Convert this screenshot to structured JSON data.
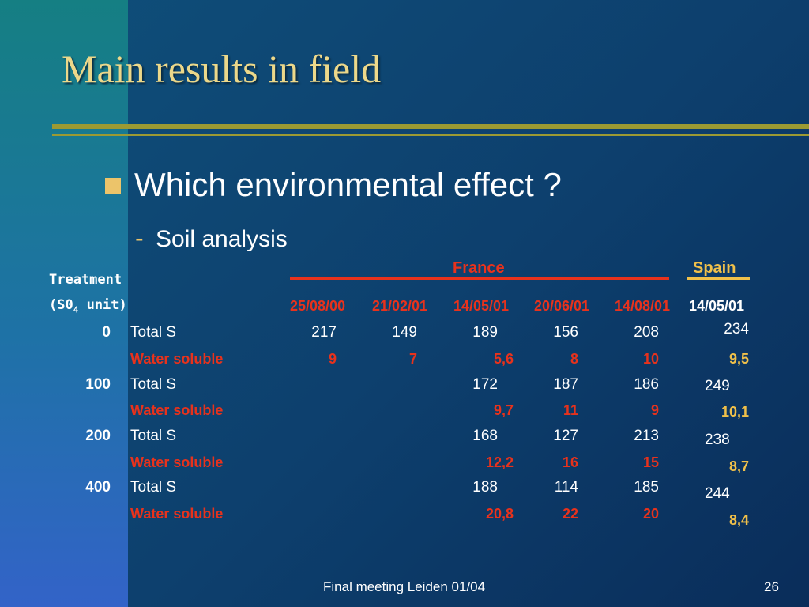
{
  "slide": {
    "title": "Main results in field",
    "bullet": "Which environmental effect ?",
    "dash": "-",
    "sub_bullet": "Soil analysis"
  },
  "table": {
    "treatment_header": "Treatment",
    "unit_header_prefix": "(S0",
    "unit_header_sub": "4",
    "unit_header_suffix": " unit)",
    "country_france": "France",
    "country_spain": "Spain",
    "dates": [
      "25/08/00",
      "21/02/01",
      "14/05/01",
      "20/06/01",
      "14/08/01",
      "14/05/01"
    ],
    "rows": [
      {
        "dose": "0",
        "total_label": "Total S",
        "total": [
          "217",
          "149",
          "189",
          "156",
          "208",
          "234"
        ],
        "ws_label": "Water soluble",
        "ws": [
          "9",
          "7",
          "5,6",
          "8",
          "10",
          "9,5"
        ]
      },
      {
        "dose": "100",
        "total_label": "Total S",
        "total": [
          "",
          "",
          "172",
          "187",
          "186",
          "249"
        ],
        "ws_label": "Water soluble",
        "ws": [
          "",
          "",
          "9,7",
          "11",
          "9",
          "10,1"
        ]
      },
      {
        "dose": "200",
        "total_label": "Total S",
        "total": [
          "",
          "",
          "168",
          "127",
          "213",
          "238"
        ],
        "ws_label": "Water soluble",
        "ws": [
          "",
          "",
          "12,2",
          "16",
          "15",
          "8,7"
        ]
      },
      {
        "dose": "400",
        "total_label": "Total S",
        "total": [
          "",
          "",
          "188",
          "114",
          "185",
          "244"
        ],
        "ws_label": "Water soluble",
        "ws": [
          "",
          "",
          "20,8",
          "22",
          "20",
          "8,4"
        ]
      }
    ]
  },
  "footer": {
    "text": "Final meeting Leiden 01/04",
    "page": "26"
  },
  "colors": {
    "title": "#ecd88a",
    "france_red": "#e8321c",
    "spain_gold": "#f0c04a",
    "rule_olive": "#9c9a33"
  }
}
